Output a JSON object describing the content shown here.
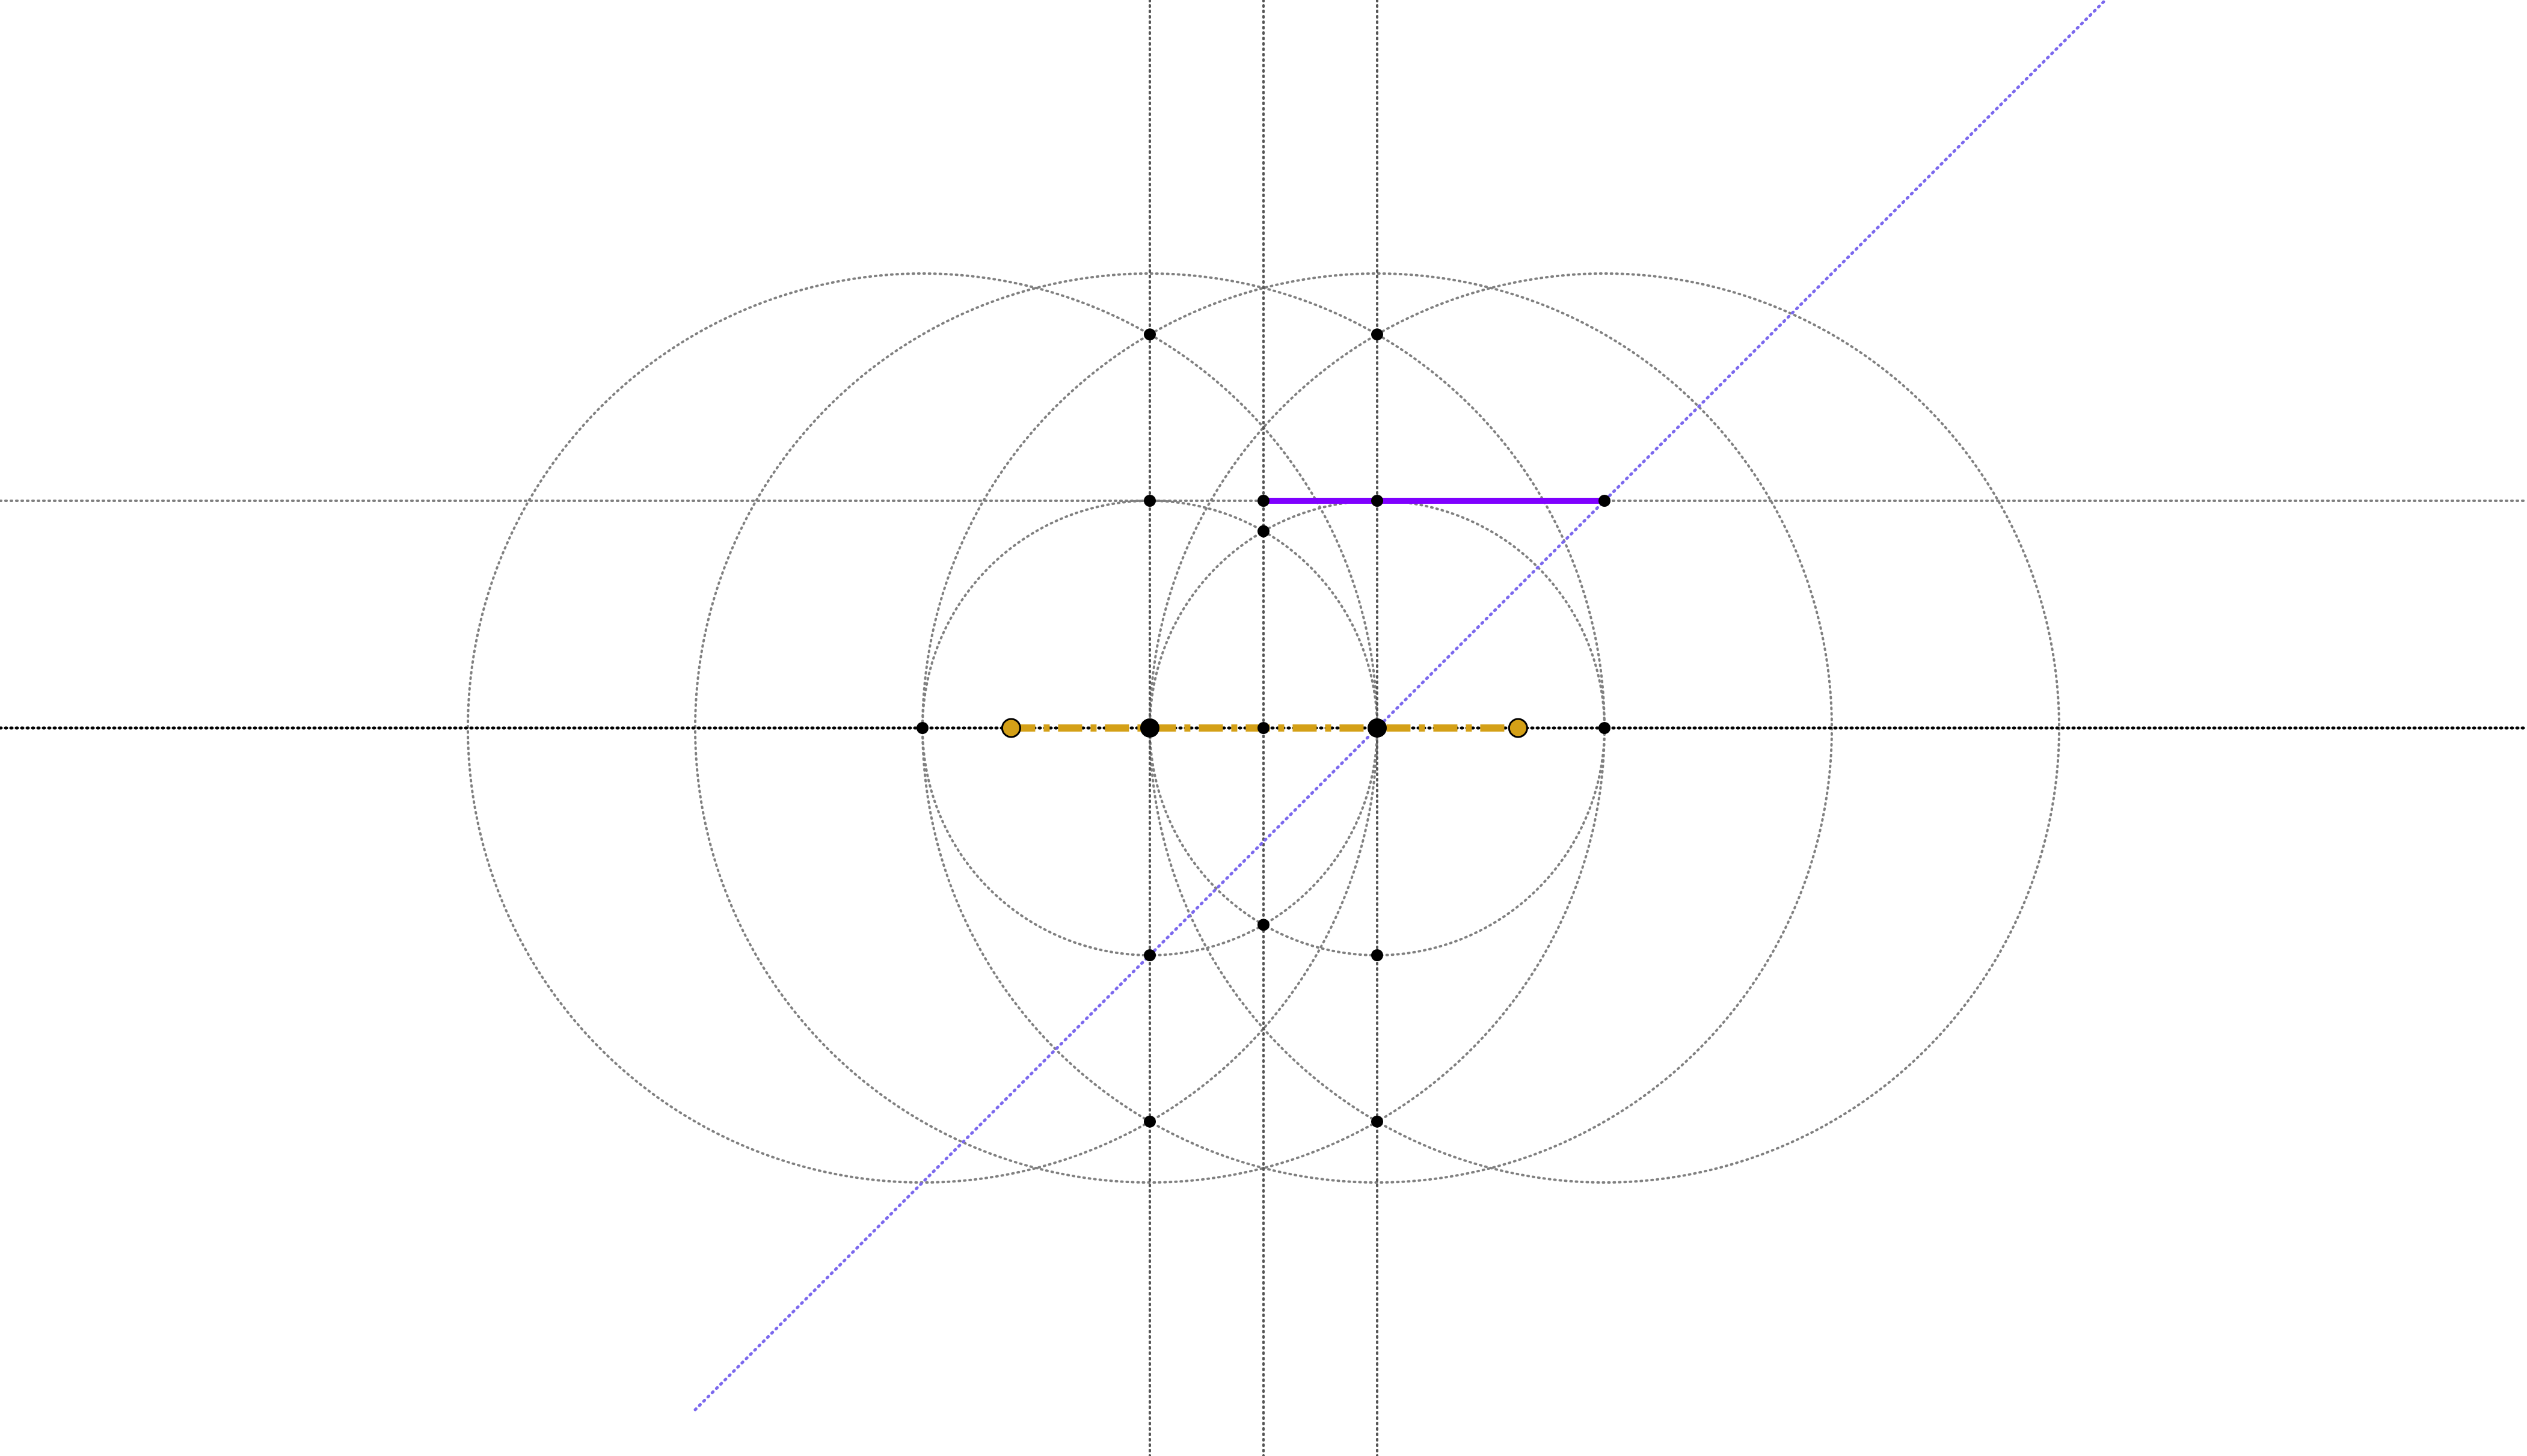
{
  "colors": {
    "background": "#ffffff",
    "construction": "#808080",
    "axis": "#000000",
    "point": "#000000",
    "highlight_segment": "#7f00ff",
    "diagonal_line": "#7b68ee",
    "gold_segment": "#d4a017"
  },
  "construction": {
    "unit": "r",
    "points": {
      "O": [
        0,
        0
      ],
      "A": [
        -1,
        0
      ],
      "M": [
        -0.5,
        0
      ],
      "L": [
        -2,
        0
      ],
      "R": [
        1,
        0
      ],
      "G1": [
        -1.61,
        0
      ],
      "G2": [
        0.62,
        0
      ]
    },
    "axis_line": {
      "through": [
        "L",
        "R"
      ]
    },
    "vertical_lines": [
      {
        "x": -1
      },
      {
        "x": -0.5
      },
      {
        "x": 0
      }
    ],
    "horizontal_line": {
      "y": 1
    },
    "diagonal_line": {
      "through": [
        "O",
        "R_top"
      ],
      "slope": 1
    },
    "circles": [
      {
        "center": "O",
        "radius": 1
      },
      {
        "center": "A",
        "radius": 1
      },
      {
        "center": "O",
        "radius": 2
      },
      {
        "center": "A",
        "radius": 2
      },
      {
        "center": "L",
        "radius": 2
      },
      {
        "center": "R",
        "radius": 2
      }
    ],
    "highlight_segment": {
      "from": [
        -0.5,
        1
      ],
      "to": [
        1,
        1
      ]
    },
    "gold_segment": {
      "from": "G1",
      "to": "G2"
    },
    "marked_points": [
      [
        -2,
        0
      ],
      [
        -1,
        0
      ],
      [
        -0.5,
        0
      ],
      [
        0,
        0
      ],
      [
        1,
        0
      ],
      [
        -1,
        1
      ],
      [
        -0.5,
        1
      ],
      [
        0,
        1
      ],
      [
        1,
        1
      ],
      [
        -0.5,
        0.866
      ],
      [
        -0.5,
        -0.866
      ],
      [
        -1,
        -1
      ],
      [
        0,
        -1
      ],
      [
        -1,
        1.732
      ],
      [
        0,
        1.732
      ],
      [
        -1,
        -1.732
      ],
      [
        0,
        -1.732
      ]
    ],
    "large_points": [
      [
        -1,
        0
      ],
      [
        0,
        0
      ]
    ],
    "gold_points": [
      [
        -1.61,
        0
      ],
      [
        0.62,
        0
      ]
    ]
  }
}
